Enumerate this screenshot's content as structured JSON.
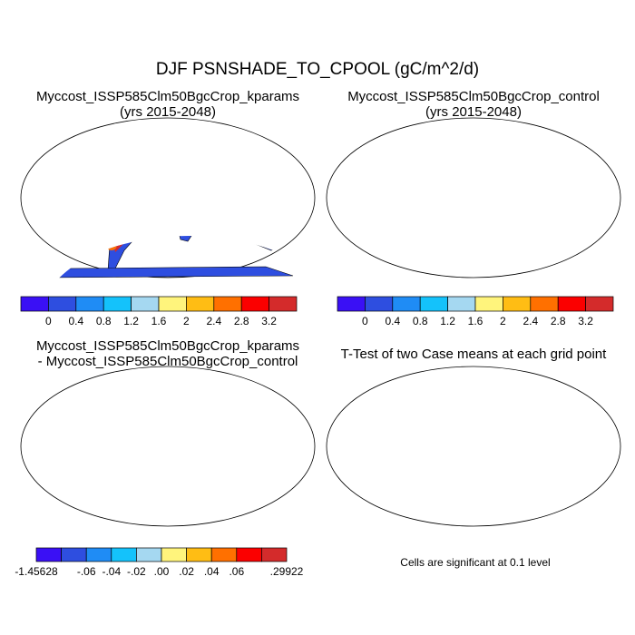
{
  "title": "DJF PSNSHADE_TO_CPOOL (gC/m^2/d)",
  "panels": [
    {
      "title_line1": "Myccost_ISSP585Clm50BgcCrop_kparams",
      "title_line2": "(yrs 2015-2048)"
    },
    {
      "title_line1": "Myccost_ISSP585Clm50BgcCrop_control",
      "title_line2": "(yrs 2015-2048)"
    },
    {
      "title_line1": "Myccost_ISSP585Clm50BgcCrop_kparams",
      "title_line2": "- Myccost_ISSP585Clm50BgcCrop_control"
    },
    {
      "title_line1": "T-Test of two Case means at each grid point"
    }
  ],
  "colors": [
    "#3a10f5",
    "#2e4ee0",
    "#1f8cf5",
    "#14c2fb",
    "#a5d8f1",
    "#fff47c",
    "#ffbd14",
    "#ff7000",
    "#fb0000",
    "#d42b2b"
  ],
  "colorbar_abs": {
    "labels": [
      "0",
      "0.4",
      "0.8",
      "1.2",
      "1.6",
      "2",
      "2.4",
      "2.8",
      "3.2"
    ]
  },
  "colorbar_diff": {
    "labels": [
      "-1.45628",
      "-.06",
      "-.04",
      "-.02",
      ".00",
      ".02",
      ".04",
      ".06",
      ".29922"
    ]
  },
  "ttest_note": "Cells are significant at 0.1 level"
}
